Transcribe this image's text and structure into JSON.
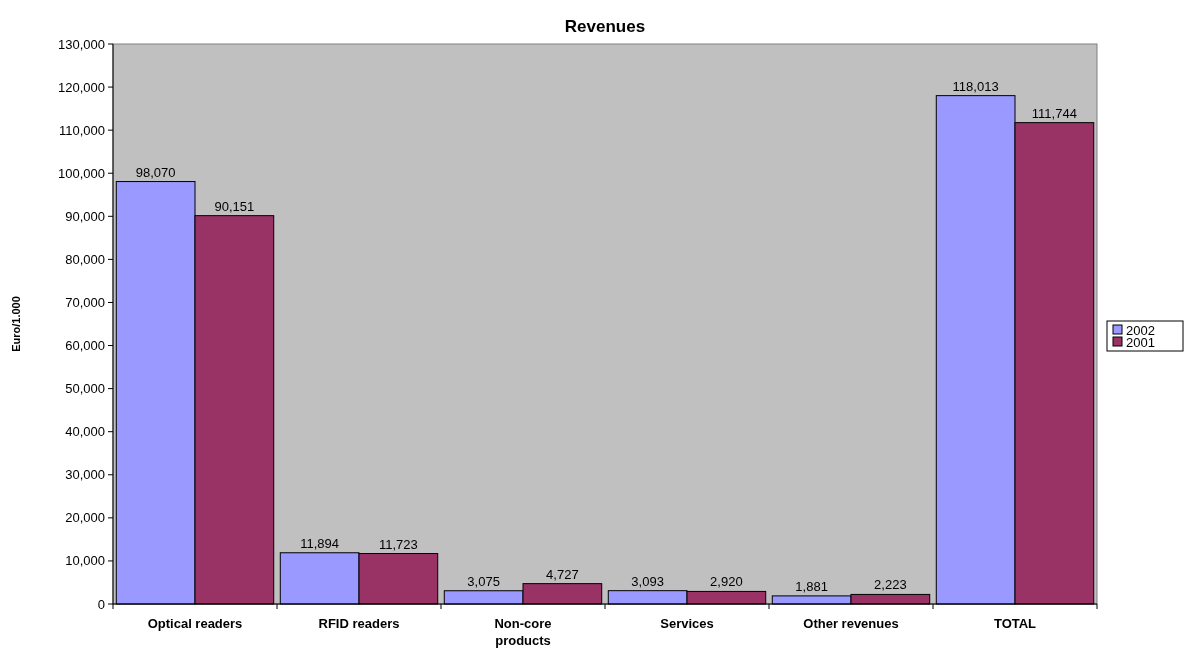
{
  "chart_data": {
    "type": "bar",
    "title": "Revenues",
    "ylabel": "Euro/1.000",
    "categories": [
      "Optical readers",
      "RFID readers",
      "Non-core products",
      "Services",
      "Other revenues",
      "TOTAL"
    ],
    "series": [
      {
        "name": "2002",
        "color": "#9999ff",
        "values": [
          98070,
          11894,
          3075,
          3093,
          1881,
          118013
        ],
        "value_labels": [
          "98,070",
          "11,894",
          "3,075",
          "3,093",
          "1,881",
          "118,013"
        ]
      },
      {
        "name": "2001",
        "color": "#993366",
        "values": [
          90151,
          11723,
          4727,
          2920,
          2223,
          111744
        ],
        "value_labels": [
          "90,151",
          "11,723",
          "4,727",
          "2,920",
          "2,223",
          "111,744"
        ]
      }
    ],
    "ylim": [
      0,
      130000
    ],
    "yticks": [
      {
        "value": 0,
        "label": "0"
      },
      {
        "value": 10000,
        "label": "10,000"
      },
      {
        "value": 20000,
        "label": "20,000"
      },
      {
        "value": 30000,
        "label": "30,000"
      },
      {
        "value": 40000,
        "label": "40,000"
      },
      {
        "value": 50000,
        "label": "50,000"
      },
      {
        "value": 60000,
        "label": "60,000"
      },
      {
        "value": 70000,
        "label": "70,000"
      },
      {
        "value": 80000,
        "label": "80,000"
      },
      {
        "value": 90000,
        "label": "90,000"
      },
      {
        "value": 100000,
        "label": "100,000"
      },
      {
        "value": 110000,
        "label": "110,000"
      },
      {
        "value": 120000,
        "label": "120,000"
      },
      {
        "value": 130000,
        "label": "130,000"
      }
    ],
    "legend": "right"
  }
}
